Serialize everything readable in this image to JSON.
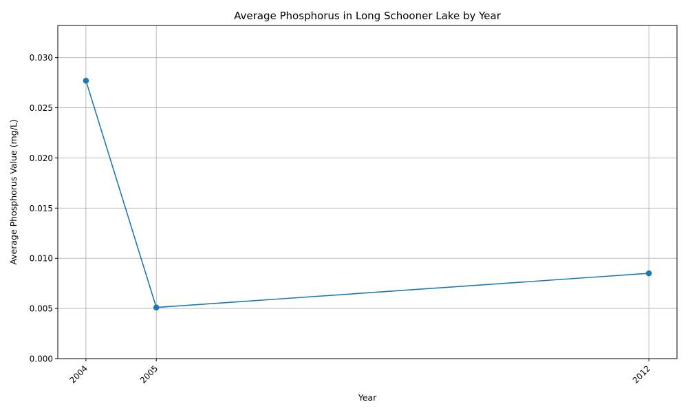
{
  "chart_data": {
    "type": "line",
    "title": "Average Phosphorus in Long Schooner Lake by Year",
    "xlabel": "Year",
    "ylabel": "Average Phosphorus Value (mg/L)",
    "x": [
      2004,
      2005,
      2012
    ],
    "series": [
      {
        "values": [
          0.0277,
          0.0051,
          0.0085
        ],
        "color": "#1f77b4",
        "marker": "circle"
      }
    ],
    "xticks": [
      2004,
      2005,
      2012
    ],
    "xtick_labels": [
      "2004",
      "2005",
      "2012"
    ],
    "xlim": [
      2003.6,
      2012.4
    ],
    "yticks": [
      0.0,
      0.005,
      0.01,
      0.015,
      0.02,
      0.025,
      0.03
    ],
    "ytick_labels": [
      "0.000",
      "0.005",
      "0.010",
      "0.015",
      "0.020",
      "0.025",
      "0.030"
    ],
    "ylim": [
      0,
      0.0332
    ],
    "grid": true,
    "legend": false
  }
}
